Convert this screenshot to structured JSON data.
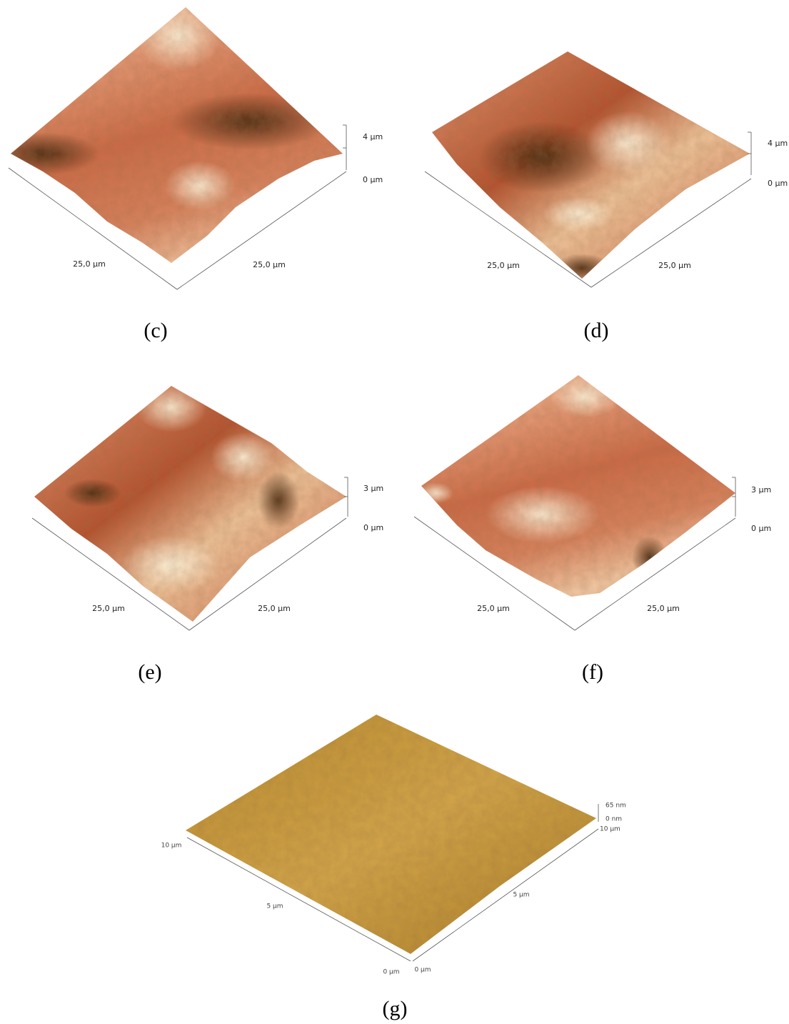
{
  "panels": [
    {
      "caption": "(c)",
      "z_top": "4 µm",
      "z_bottom": "0 µm",
      "x_label": "25,0 µm",
      "y_label": "25,0 µm"
    },
    {
      "caption": "(d)",
      "z_top": "4 µm",
      "z_bottom": "0 µm",
      "x_label": "25,0 µm",
      "y_label": "25,0 µm"
    },
    {
      "caption": "(e)",
      "z_top": "3 µm",
      "z_bottom": "0 µm",
      "x_label": "25,0 µm",
      "y_label": "25,0 µm"
    },
    {
      "caption": "(f)",
      "z_top": "3 µm",
      "z_bottom": "0 µm",
      "x_label": "25,0 µm",
      "y_label": "25,0 µm"
    }
  ],
  "panel_g": {
    "caption": "(g)",
    "z_top": "65 nm",
    "z_bottom": "0 nm",
    "right_end": "10 µm",
    "left_end": "10 µm",
    "left_mid": "5 µm",
    "right_mid": "5 µm",
    "left_origin": "0 µm",
    "right_origin": "0 µm"
  }
}
